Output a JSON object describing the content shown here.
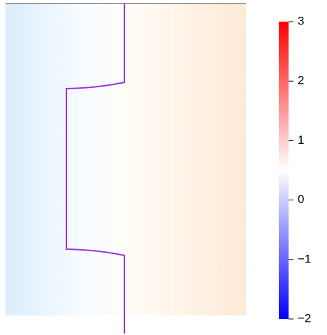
{
  "chart_data": {
    "type": "colorbar",
    "zlim": [
      -2,
      3
    ],
    "zticks": [
      {
        "value": -2,
        "label": "−2"
      },
      {
        "value": -1,
        "label": "−1"
      },
      0,
      1,
      2,
      3
    ],
    "colors": [
      "#0000ff",
      "#ffffff",
      "#ff0000"
    ]
  }
}
